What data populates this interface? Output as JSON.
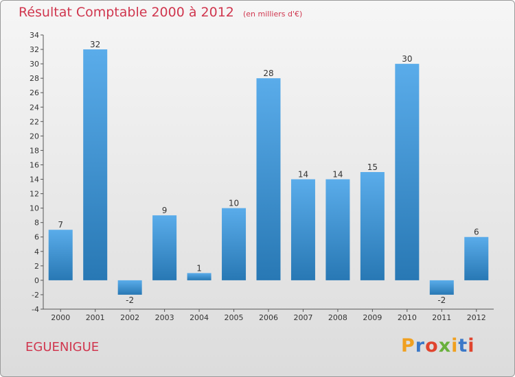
{
  "header": {
    "title": "Résultat Comptable 2000 à 2012",
    "subtitle": "(en milliers d'€)"
  },
  "commune": "EGUENIGUE",
  "logo": {
    "letters": [
      "P",
      "r",
      "o",
      "x",
      "i",
      "t",
      "i"
    ],
    "colors": [
      "#f0a020",
      "#3a78c8",
      "#e0442e",
      "#69b03c",
      "#f0a020",
      "#3a78c8",
      "#e0442e"
    ]
  },
  "chart_data": {
    "type": "bar",
    "title": "Résultat Comptable 2000 à 2012",
    "subtitle": "(en milliers d'€)",
    "xlabel": "",
    "ylabel": "",
    "categories": [
      "2000",
      "2001",
      "2002",
      "2003",
      "2004",
      "2005",
      "2006",
      "2007",
      "2008",
      "2009",
      "2010",
      "2011",
      "2012"
    ],
    "values": [
      7,
      32,
      -2,
      9,
      1,
      10,
      28,
      14,
      14,
      15,
      30,
      -2,
      6
    ],
    "ylim": [
      -4,
      34
    ],
    "yticks": [
      -4,
      -2,
      0,
      2,
      4,
      6,
      8,
      10,
      12,
      14,
      16,
      18,
      20,
      22,
      24,
      26,
      28,
      30,
      32,
      34
    ],
    "grid": false,
    "bar_color_top": "#5aacea",
    "bar_color_bottom": "#2878b4"
  }
}
